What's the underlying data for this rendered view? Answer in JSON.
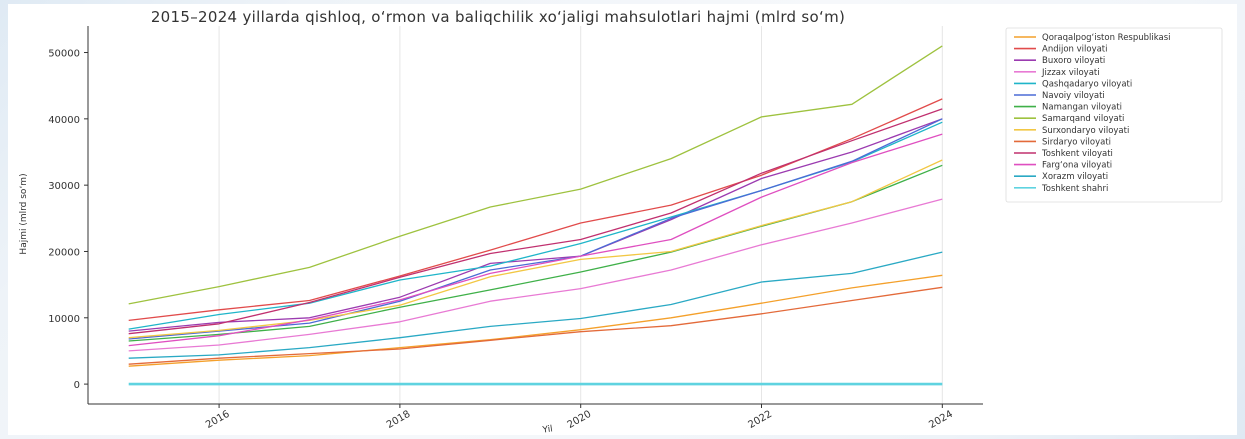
{
  "chart_data": {
    "type": "line",
    "title": "2015–2024 yillarda qishloq, o‘rmon va baliqchilik xo‘jaligi mahsulotlari hajmi (mlrd so‘m)",
    "xlabel": "Yil",
    "ylabel": "Hajmi (mlrd so‘m)",
    "x": [
      2015,
      2016,
      2017,
      2018,
      2019,
      2020,
      2021,
      2022,
      2023,
      2024
    ],
    "xticks": [
      2016,
      2018,
      2020,
      2022,
      2024
    ],
    "yticks": [
      0,
      10000,
      20000,
      30000,
      40000,
      50000
    ],
    "ylim": [
      -3000,
      54000
    ],
    "xlim": [
      2014.55,
      2024.45
    ],
    "grid": true,
    "legend_position": "outside-right",
    "series": [
      {
        "name": "Qoraqalpog‘iston Respublikasi",
        "color": "#f4a02b",
        "values": [
          2700,
          3600,
          4300,
          5500,
          6700,
          8200,
          10000,
          12200,
          14500,
          16400
        ]
      },
      {
        "name": "Andijon viloyati",
        "color": "#e14b4b",
        "values": [
          9600,
          11200,
          12600,
          16300,
          20200,
          24300,
          27000,
          31500,
          37000,
          43000
        ]
      },
      {
        "name": "Buxoro viloyati",
        "color": "#9b3bb0",
        "values": [
          8000,
          9300,
          10000,
          13100,
          18200,
          19300,
          24800,
          31000,
          35000,
          40000
        ]
      },
      {
        "name": "Jizzax viloyati",
        "color": "#e87ad4",
        "values": [
          5000,
          5900,
          7500,
          9400,
          12500,
          14400,
          17200,
          21000,
          24300,
          27900
        ]
      },
      {
        "name": "Qashqadaryo viloyati",
        "color": "#1fb5c9",
        "values": [
          8300,
          10500,
          12200,
          15700,
          17800,
          21200,
          25200,
          29200,
          33500,
          39500
        ]
      },
      {
        "name": "Navoiy viloyati",
        "color": "#4c6bd6",
        "values": [
          6800,
          8000,
          9200,
          12500,
          17200,
          19300,
          25000,
          29200,
          33600,
          40000
        ]
      },
      {
        "name": "Namangan viloyati",
        "color": "#3fb049",
        "values": [
          6500,
          7500,
          8700,
          11600,
          14200,
          16900,
          19900,
          23800,
          27500,
          33000
        ]
      },
      {
        "name": "Samarqand viloyati",
        "color": "#9ec23f",
        "values": [
          12100,
          14700,
          17600,
          22300,
          26700,
          29400,
          34000,
          40300,
          42200,
          51000
        ]
      },
      {
        "name": "Surxondaryo viloyati",
        "color": "#f2c744",
        "values": [
          7000,
          8100,
          9600,
          11900,
          16200,
          18800,
          20000,
          23900,
          27500,
          33800
        ]
      },
      {
        "name": "Sirdaryo viloyati",
        "color": "#e36a3a",
        "values": [
          3000,
          3900,
          4600,
          5300,
          6600,
          7900,
          8800,
          10600,
          12600,
          14600
        ]
      },
      {
        "name": "Toshkent viloyati",
        "color": "#c0306f",
        "values": [
          7600,
          9100,
          12300,
          16100,
          19700,
          21800,
          25800,
          31800,
          36700,
          41500
        ]
      },
      {
        "name": "Farg‘ona viloyati",
        "color": "#df4fc0",
        "values": [
          5800,
          7300,
          9700,
          12700,
          16700,
          19300,
          21800,
          28200,
          33400,
          37700
        ]
      },
      {
        "name": "Xorazm viloyati",
        "color": "#2aa9c4",
        "values": [
          3900,
          4400,
          5500,
          7000,
          8700,
          9900,
          12000,
          15400,
          16700,
          19900
        ]
      },
      {
        "name": "Toshkent shahri",
        "color": "#5fd3e0",
        "values": [
          0,
          0,
          0,
          0,
          0,
          0,
          0,
          0,
          0,
          0
        ]
      }
    ]
  }
}
